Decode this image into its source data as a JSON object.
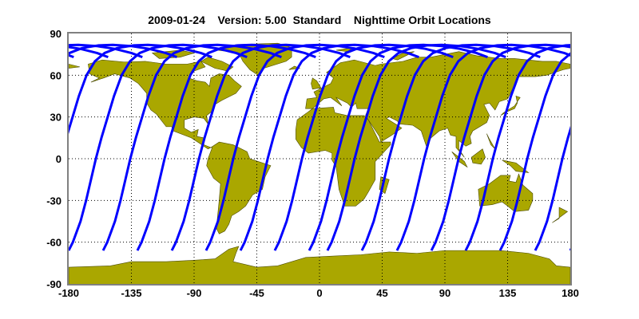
{
  "title": "2009-01-24    Version: 5.00  Standard    Nighttime Orbit Locations",
  "map": {
    "projection": "equirectangular",
    "lon_range": [
      -180,
      180
    ],
    "lat_range": [
      -90,
      90
    ],
    "x_ticks": [
      "-180",
      "-135",
      "-90",
      "-45",
      "0",
      "45",
      "90",
      "135",
      "180"
    ],
    "y_ticks": [
      "90",
      "60",
      "30",
      "0",
      "-30",
      "-60",
      "-90"
    ],
    "grid": "dotted",
    "land_color": "#aaa700",
    "ocean_color": "#ffffff",
    "orbit_color": "#0000ff",
    "orbit_start_lat": -66,
    "orbit_start_longitudes": [
      -180,
      -155.3,
      -130.7,
      -106,
      -81.4,
      -56.7,
      -32.1,
      -7.4,
      5.7,
      30.4,
      55.6,
      80.3,
      104.9,
      129.6,
      154.8
    ]
  }
}
